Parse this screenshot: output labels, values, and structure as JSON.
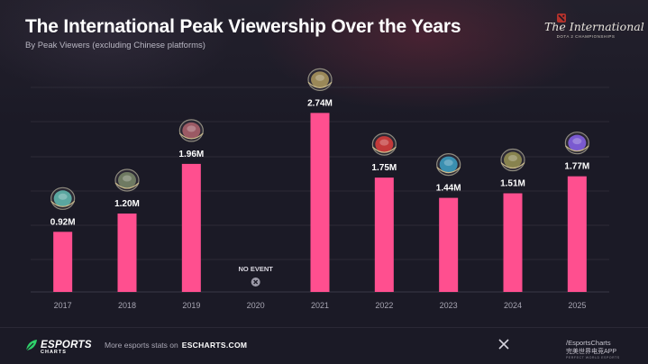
{
  "header": {
    "title": "The International Peak Viewership Over the Years",
    "subtitle": "By Peak Viewers (excluding Chinese platforms)",
    "brand_logo": {
      "script_text": "The International",
      "small_text": "DOTA 2 CHAMPIONSHIPS"
    }
  },
  "chart_data": {
    "type": "bar",
    "categories": [
      "2017",
      "2018",
      "2019",
      "2020",
      "2021",
      "2022",
      "2023",
      "2024",
      "2025"
    ],
    "values": [
      0.92,
      1.2,
      1.96,
      null,
      2.74,
      1.75,
      1.44,
      1.51,
      1.77
    ],
    "value_labels": [
      "0.92M",
      "1.20M",
      "1.96M",
      "",
      "2.74M",
      "1.75M",
      "1.44M",
      "1.51M",
      "1.77M"
    ],
    "unit": "M",
    "no_event_label": "NO EVENT",
    "no_event_category": "2020",
    "ylim": [
      0,
      3.2
    ],
    "grid": true,
    "bar_color": "#ff4f8f",
    "grid_color": "#2c2a36",
    "aegis_colors": [
      "#5aa6a0",
      "#6f7a62",
      "#9b5a64",
      null,
      "#9a8858",
      "#c23a3a",
      "#3a8fb0",
      "#88834f",
      "#7a5ad0"
    ]
  },
  "footer": {
    "brand": "ESPORTS",
    "brand_sub": "CHARTS",
    "more_text": "More esports stats on",
    "more_link": "ESCHARTS.COM",
    "handle": "/EsportsCharts",
    "app_text": "完美世界电竞APP",
    "app_sub": "PERFECT WORLD ESPORTS"
  }
}
